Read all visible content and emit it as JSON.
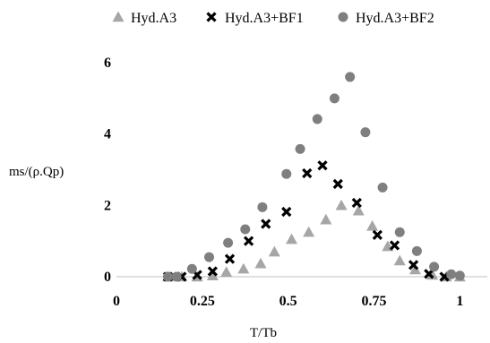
{
  "chart_data": {
    "type": "scatter",
    "xlabel": "T/Tb",
    "ylabel": "ms/(ρ.Qp)",
    "xlim": [
      0,
      1.08
    ],
    "ylim": [
      0,
      6
    ],
    "x_ticks": [
      "0",
      "0.25",
      "0.5",
      "0.75",
      "1"
    ],
    "y_ticks": [
      "0",
      "2",
      "4",
      "6"
    ],
    "grid": false,
    "legend_position": "top",
    "series": [
      {
        "name": "Hyd.A3",
        "marker": "triangle",
        "color": "#a6a6a6",
        "points": [
          {
            "x": 0.15,
            "y": 0.0
          },
          {
            "x": 0.19,
            "y": 0.0
          },
          {
            "x": 0.235,
            "y": 0.0
          },
          {
            "x": 0.28,
            "y": 0.03
          },
          {
            "x": 0.32,
            "y": 0.13
          },
          {
            "x": 0.37,
            "y": 0.22
          },
          {
            "x": 0.42,
            "y": 0.37
          },
          {
            "x": 0.46,
            "y": 0.7
          },
          {
            "x": 0.51,
            "y": 1.05
          },
          {
            "x": 0.56,
            "y": 1.25
          },
          {
            "x": 0.61,
            "y": 1.6
          },
          {
            "x": 0.655,
            "y": 2.0
          },
          {
            "x": 0.705,
            "y": 1.85
          },
          {
            "x": 0.745,
            "y": 1.42
          },
          {
            "x": 0.79,
            "y": 0.85
          },
          {
            "x": 0.825,
            "y": 0.45
          },
          {
            "x": 0.87,
            "y": 0.2
          },
          {
            "x": 0.92,
            "y": 0.05
          },
          {
            "x": 0.96,
            "y": 0.0
          },
          {
            "x": 1.0,
            "y": 0.0
          }
        ]
      },
      {
        "name": "Hyd.A3+BF1",
        "marker": "x",
        "color": "#000000",
        "points": [
          {
            "x": 0.15,
            "y": 0.0
          },
          {
            "x": 0.19,
            "y": 0.0
          },
          {
            "x": 0.235,
            "y": 0.05
          },
          {
            "x": 0.28,
            "y": 0.15
          },
          {
            "x": 0.33,
            "y": 0.5
          },
          {
            "x": 0.385,
            "y": 1.0
          },
          {
            "x": 0.435,
            "y": 1.48
          },
          {
            "x": 0.495,
            "y": 1.82
          },
          {
            "x": 0.555,
            "y": 2.9
          },
          {
            "x": 0.6,
            "y": 3.12
          },
          {
            "x": 0.645,
            "y": 2.6
          },
          {
            "x": 0.7,
            "y": 2.07
          },
          {
            "x": 0.76,
            "y": 1.17
          },
          {
            "x": 0.81,
            "y": 0.88
          },
          {
            "x": 0.865,
            "y": 0.33
          },
          {
            "x": 0.91,
            "y": 0.08
          },
          {
            "x": 0.955,
            "y": 0.0
          }
        ]
      },
      {
        "name": "Hyd.A3+BF2",
        "marker": "circle",
        "color": "#7f7f7f",
        "points": [
          {
            "x": 0.15,
            "y": 0.0
          },
          {
            "x": 0.175,
            "y": 0.0
          },
          {
            "x": 0.22,
            "y": 0.22
          },
          {
            "x": 0.27,
            "y": 0.55
          },
          {
            "x": 0.325,
            "y": 0.95
          },
          {
            "x": 0.375,
            "y": 1.33
          },
          {
            "x": 0.425,
            "y": 1.95
          },
          {
            "x": 0.495,
            "y": 2.88
          },
          {
            "x": 0.535,
            "y": 3.58
          },
          {
            "x": 0.585,
            "y": 4.42
          },
          {
            "x": 0.635,
            "y": 5.0
          },
          {
            "x": 0.68,
            "y": 5.6
          },
          {
            "x": 0.725,
            "y": 4.05
          },
          {
            "x": 0.775,
            "y": 2.5
          },
          {
            "x": 0.825,
            "y": 1.25
          },
          {
            "x": 0.875,
            "y": 0.72
          },
          {
            "x": 0.925,
            "y": 0.28
          },
          {
            "x": 0.975,
            "y": 0.07
          },
          {
            "x": 1.0,
            "y": 0.03
          }
        ]
      }
    ]
  }
}
